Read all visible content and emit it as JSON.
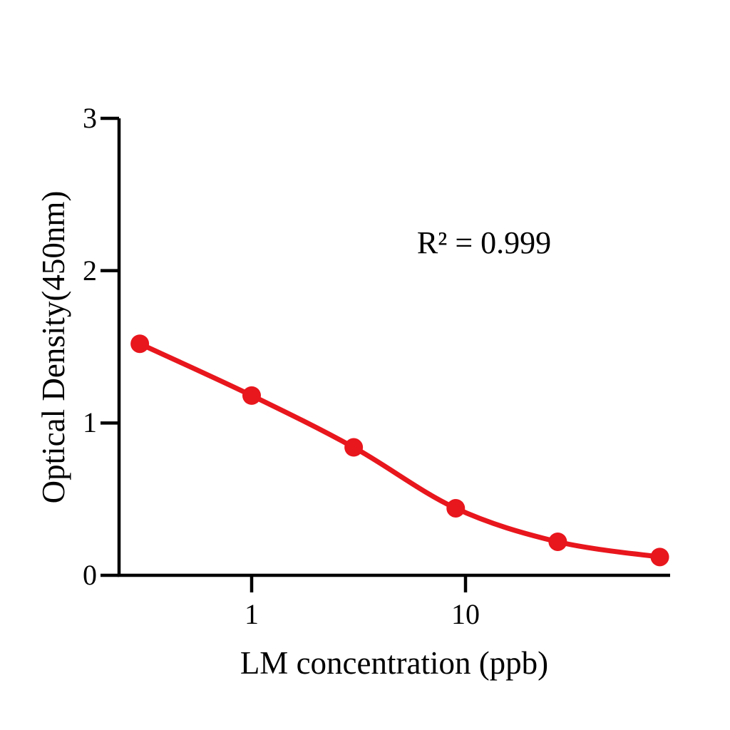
{
  "chart_data": {
    "type": "scatter",
    "subtype": "dose-response standard curve with smooth fitted line",
    "xlabel": "LM concentration (ppb)",
    "ylabel": "Optical Density(450nm)",
    "annotation": "R² = 0.999",
    "x_scale": "log",
    "x": [
      0.3,
      1,
      3,
      9,
      27,
      81
    ],
    "y": [
      1.52,
      1.18,
      0.84,
      0.44,
      0.22,
      0.12
    ],
    "x_ticks": [
      1,
      10
    ],
    "x_tick_labels": [
      "1",
      "10"
    ],
    "y_ticks": [
      0,
      1,
      2,
      3
    ],
    "y_tick_labels": [
      "0",
      "1",
      "2",
      "3"
    ],
    "ylim": [
      0,
      3
    ],
    "xlim_log10": [
      -0.62,
      1.96
    ],
    "series_color": "#e8161d",
    "axis_color": "#000000",
    "background_color": "#ffffff",
    "marker": "filled-circle",
    "grid": "off",
    "legend": "none"
  }
}
